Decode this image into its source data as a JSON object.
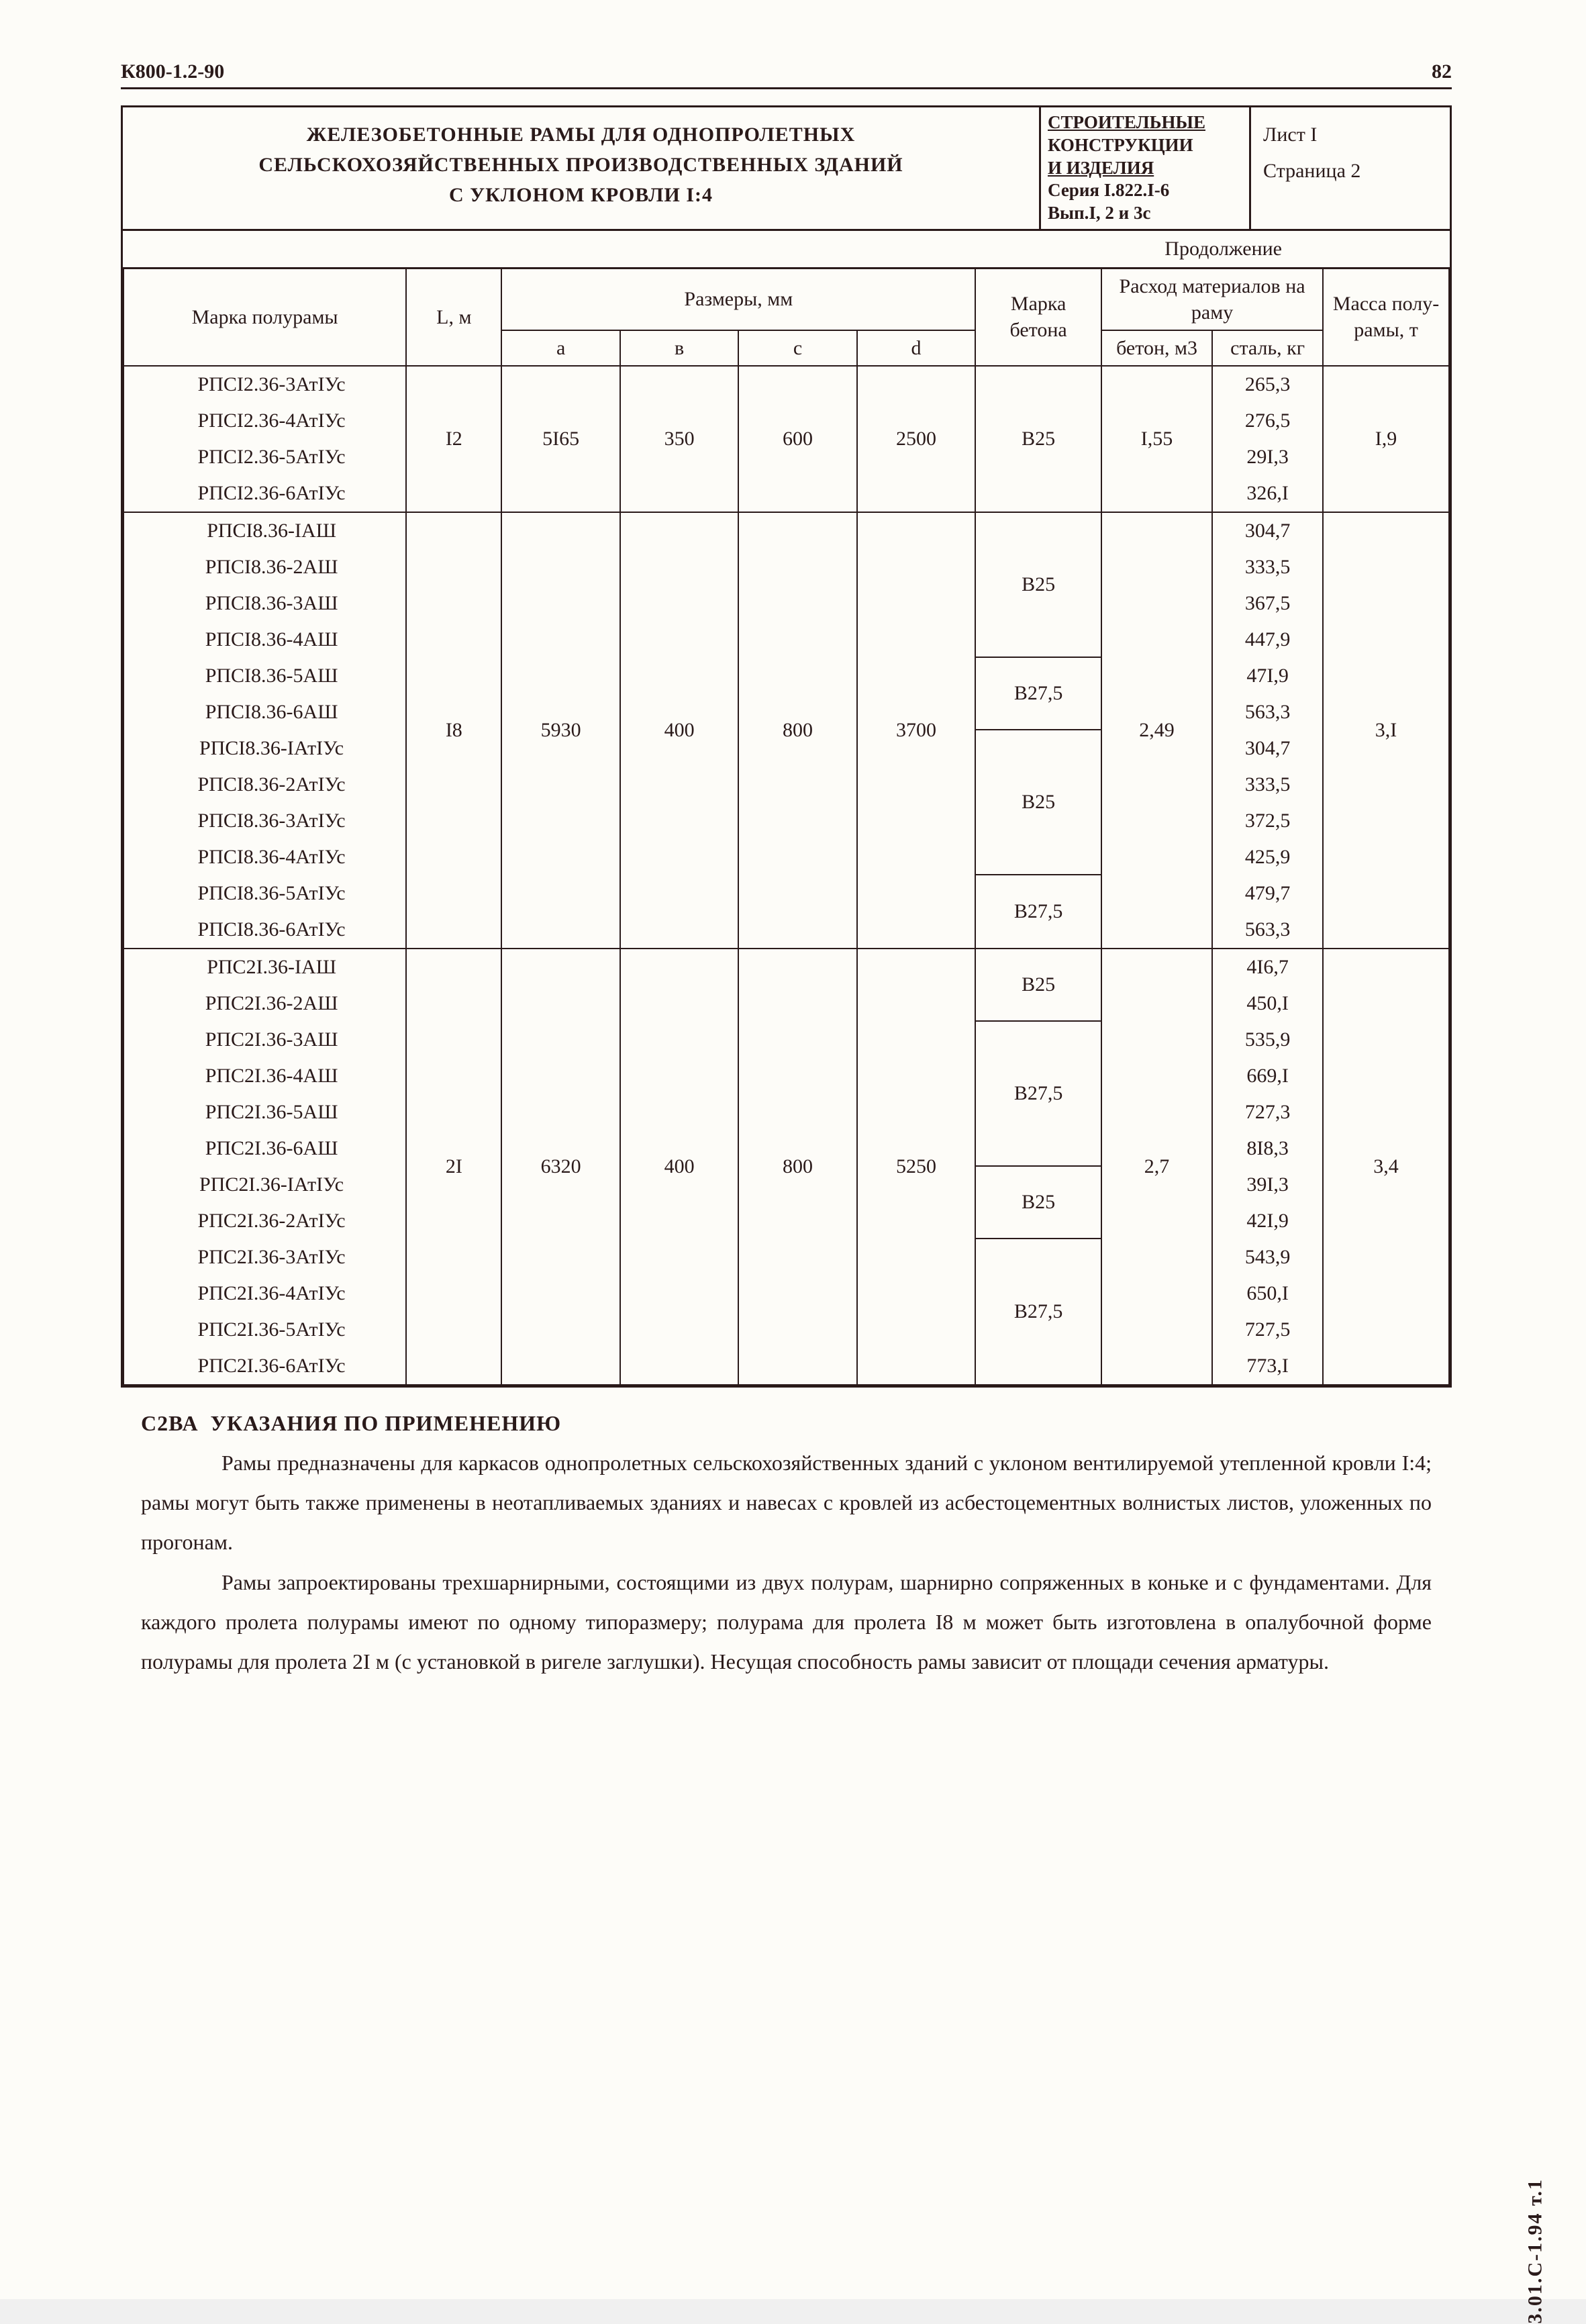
{
  "doc_code": "К800-1.2-90",
  "page_number": "82",
  "title_lines": [
    "ЖЕЛЕЗОБЕТОННЫЕ РАМЫ ДЛЯ ОДНОПРОЛЕТНЫХ",
    "СЕЛЬСКОХОЗЯЙСТВЕННЫХ ПРОИЗВОДСТВЕННЫХ ЗДАНИЙ",
    "С УКЛОНОМ КРОВЛИ I:4"
  ],
  "stamp": {
    "l1": "СТРОИТЕЛЬНЫЕ",
    "l2": "КОНСТРУКЦИИ",
    "l3": "И ИЗДЕЛИЯ",
    "l4": "Серия I.822.I-6",
    "l5": "Вып.I, 2 и 3с"
  },
  "sheet": {
    "l1": "Лист I",
    "l2": "Страница 2"
  },
  "continuation": "Продолжение",
  "headers": {
    "mark": "Марка полурамы",
    "L": "L, м",
    "dims": "Размеры, мм",
    "a": "a",
    "b": "в",
    "c": "с",
    "d": "d",
    "concrete_mark": "Марка бетона",
    "consumption": "Расход материалов на раму",
    "concrete": "бетон, м3",
    "steel": "сталь, кг",
    "mass": "Масса полу-рамы, т"
  },
  "groups": [
    {
      "marks": [
        "РПСI2.36-3АтIУс",
        "РПСI2.36-4АтIУс",
        "РПСI2.36-5АтIУс",
        "РПСI2.36-6АтIУс"
      ],
      "L": "I2",
      "a": "5I65",
      "b": "350",
      "c": "600",
      "d": "2500",
      "marka_groups": [
        {
          "v": "В25",
          "span": 4
        }
      ],
      "concrete": "I,55",
      "steel": [
        "265,3",
        "276,5",
        "29I,3",
        "326,I"
      ],
      "mass": "I,9"
    },
    {
      "marks": [
        "РПСI8.36-IАШ",
        "РПСI8.36-2АШ",
        "РПСI8.36-3АШ",
        "РПСI8.36-4АШ",
        "РПСI8.36-5АШ",
        "РПСI8.36-6АШ",
        "РПСI8.36-IАтIУс",
        "РПСI8.36-2АтIУс",
        "РПСI8.36-3АтIУс",
        "РПСI8.36-4АтIУс",
        "РПСI8.36-5АтIУс",
        "РПСI8.36-6АтIУс"
      ],
      "L": "I8",
      "a": "5930",
      "b": "400",
      "c": "800",
      "d": "3700",
      "marka_groups": [
        {
          "v": "В25",
          "span": 4
        },
        {
          "v": "В27,5",
          "span": 2
        },
        {
          "v": "В25",
          "span": 4
        },
        {
          "v": "В27,5",
          "span": 2
        }
      ],
      "concrete": "2,49",
      "steel": [
        "304,7",
        "333,5",
        "367,5",
        "447,9",
        "47I,9",
        "563,3",
        "304,7",
        "333,5",
        "372,5",
        "425,9",
        "479,7",
        "563,3"
      ],
      "mass": "3,I"
    },
    {
      "marks": [
        "РПС2I.36-IАШ",
        "РПС2I.36-2АШ",
        "РПС2I.36-3АШ",
        "РПС2I.36-4АШ",
        "РПС2I.36-5АШ",
        "РПС2I.36-6АШ",
        "РПС2I.36-IАтIУс",
        "РПС2I.36-2АтIУс",
        "РПС2I.36-3АтIУс",
        "РПС2I.36-4АтIУс",
        "РПС2I.36-5АтIУс",
        "РПС2I.36-6АтIУс"
      ],
      "L": "2I",
      "a": "6320",
      "b": "400",
      "c": "800",
      "d": "5250",
      "marka_groups": [
        {
          "v": "В25",
          "span": 2
        },
        {
          "v": "В27,5",
          "span": 4
        },
        {
          "v": "В25",
          "span": 2
        },
        {
          "v": "В27,5",
          "span": 4
        }
      ],
      "concrete": "2,7",
      "steel": [
        "4I6,7",
        "450,I",
        "535,9",
        "669,I",
        "727,3",
        "8I8,3",
        "39I,3",
        "42I,9",
        "543,9",
        "650,I",
        "727,5",
        "773,I"
      ],
      "mass": "3,4"
    }
  ],
  "notes": {
    "header": "С2ВА  УКАЗАНИЯ ПО ПРИМЕНЕНИЮ",
    "p1": "Рамы предназначены для каркасов однопролетных сельскохозяйственных зданий с уклоном вентилируемой утепленной кровли I:4; рамы могут быть также применены в неотапливаемых зданиях и навесах с кровлей из асбестоцементных волнистых листов, уложенных по прогонам.",
    "p2": "Рамы запроектированы трехшарнирными, состоящими из двух полурам, шарнирно сопряженных в коньке и с фундаментами. Для каждого пролета полурамы имеют по одному типоразмеру; полурама для пролета I8 м может быть изготовлена в опалубочной форме полурамы для пролета 2I м (с установкой в ригеле заглушки). Несущая способность рамы зависит от площади сечения арматуры."
  },
  "side_code": "3.01.С-1.94 т.1"
}
